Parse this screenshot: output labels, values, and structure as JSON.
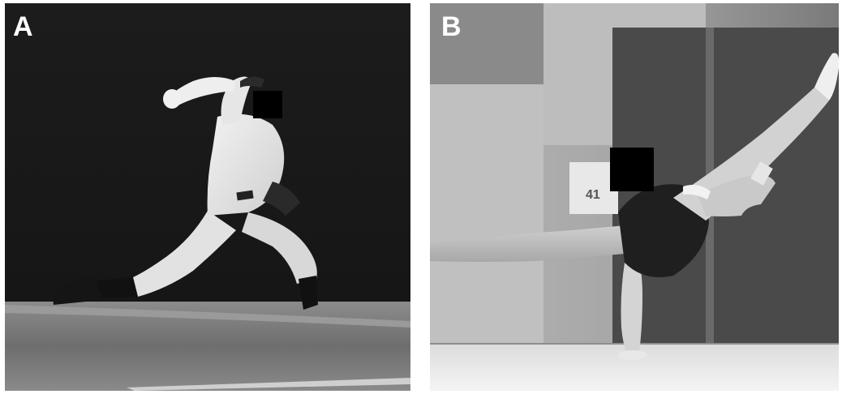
{
  "panels": [
    {
      "label": "A",
      "content": "baseball-pitcher-photo"
    },
    {
      "label": "B",
      "content": "gymnast-floor-photo",
      "background_sign": "41"
    }
  ],
  "colors": {
    "background": "#ffffff",
    "panel_label": "#ffffff",
    "redaction_box": "#000000"
  }
}
